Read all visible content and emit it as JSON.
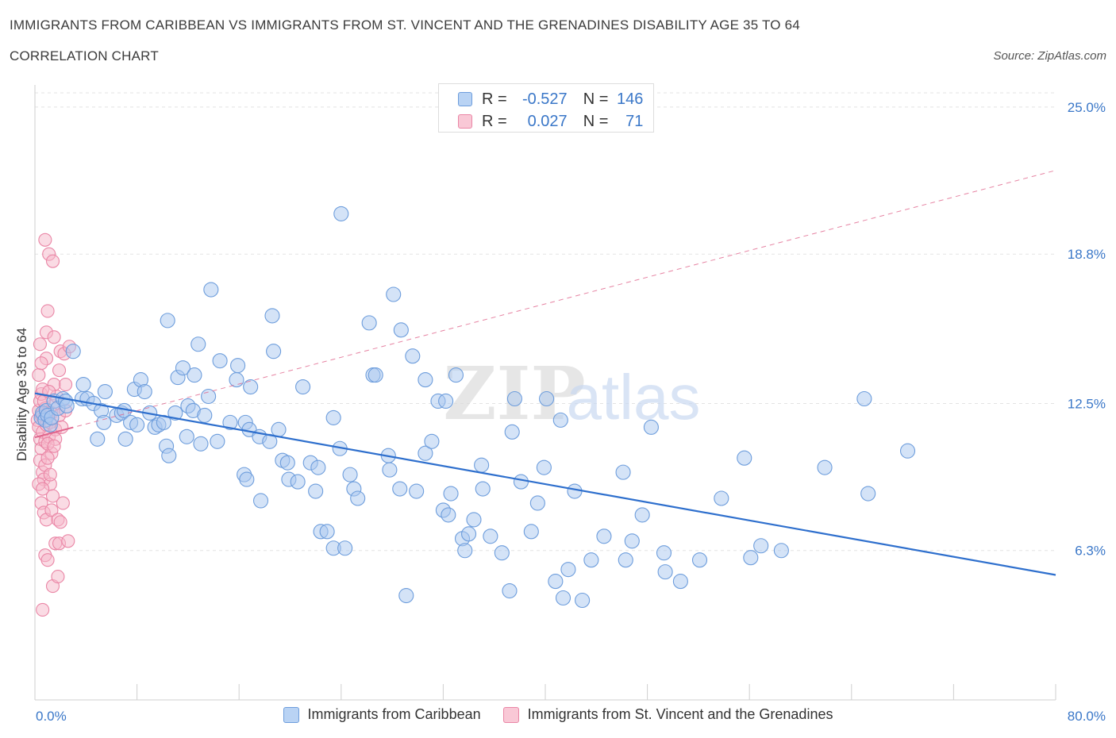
{
  "header": {
    "title": "IMMIGRANTS FROM CARIBBEAN VS IMMIGRANTS FROM ST. VINCENT AND THE GRENADINES DISABILITY AGE 35 TO 64",
    "subtitle": "CORRELATION CHART",
    "source": "Source: ZipAtlas.com"
  },
  "watermark": {
    "part1": "ZIP",
    "part2": "atlas"
  },
  "legend": {
    "rows": [
      {
        "r_label": "R =",
        "r_value": "-0.527",
        "n_label": "N =",
        "n_value": "146"
      },
      {
        "r_label": "R =",
        "r_value": "0.027",
        "n_label": "N =",
        "n_value": "71"
      }
    ]
  },
  "colors": {
    "blue_fill": "#a9c8ef",
    "blue_stroke": "#6d9ddc",
    "blue_line": "#2e6fcd",
    "pink_fill": "#f6b7c9",
    "pink_stroke": "#ea86a6",
    "pink_line": "#e0658c",
    "axis_label": "#3a77c8",
    "grid": "#e3e3e3"
  },
  "chart_data": {
    "type": "scatter",
    "title": "IMMIGRANTS FROM CARIBBEAN VS IMMIGRANTS FROM ST. VINCENT AND THE GRENADINES DISABILITY AGE 35 TO 64",
    "xlabel": "",
    "ylabel": "Disability Age 35 to 64",
    "xlim": [
      0,
      80
    ],
    "ylim": [
      0,
      25.6
    ],
    "x_tick_labels": [
      "0.0%",
      "80.0%"
    ],
    "y_ticks": [
      6.3,
      12.5,
      18.8,
      25.0
    ],
    "y_tick_labels": [
      "6.3%",
      "12.5%",
      "18.8%",
      "25.0%"
    ],
    "grid": true,
    "legend_position": "bottom",
    "series": [
      {
        "name": "Immigrants from Caribbean",
        "color": "#a9c8ef",
        "trend": {
          "x": [
            0,
            80
          ],
          "y": [
            12.93,
            5.27
          ],
          "style": "solid"
        },
        "points": [
          [
            0.5,
            11.9
          ],
          [
            0.6,
            12.1
          ],
          [
            0.8,
            11.8
          ],
          [
            0.9,
            12.2
          ],
          [
            1.0,
            12.0
          ],
          [
            1.2,
            11.6
          ],
          [
            1.3,
            11.9
          ],
          [
            1.5,
            12.6
          ],
          [
            1.8,
            12.3
          ],
          [
            2.2,
            12.7
          ],
          [
            2.4,
            12.6
          ],
          [
            2.5,
            12.4
          ],
          [
            3.0,
            14.7
          ],
          [
            3.8,
            13.3
          ],
          [
            3.7,
            12.7
          ],
          [
            4.1,
            12.7
          ],
          [
            4.6,
            12.5
          ],
          [
            4.9,
            11.0
          ],
          [
            5.2,
            12.2
          ],
          [
            5.4,
            11.7
          ],
          [
            5.5,
            13.0
          ],
          [
            6.4,
            12.0
          ],
          [
            6.8,
            12.1
          ],
          [
            7.0,
            12.2
          ],
          [
            7.1,
            11.0
          ],
          [
            7.5,
            11.7
          ],
          [
            7.8,
            13.1
          ],
          [
            8.0,
            11.6
          ],
          [
            8.3,
            13.5
          ],
          [
            8.6,
            13.0
          ],
          [
            9.0,
            12.1
          ],
          [
            9.4,
            11.5
          ],
          [
            9.7,
            11.6
          ],
          [
            10.1,
            11.7
          ],
          [
            10.3,
            10.7
          ],
          [
            10.5,
            10.3
          ],
          [
            10.4,
            16.0
          ],
          [
            11.0,
            12.1
          ],
          [
            11.2,
            13.6
          ],
          [
            11.6,
            14.0
          ],
          [
            11.9,
            11.1
          ],
          [
            12.0,
            12.4
          ],
          [
            12.4,
            12.2
          ],
          [
            12.5,
            13.7
          ],
          [
            12.8,
            15.0
          ],
          [
            13.0,
            10.8
          ],
          [
            13.3,
            12.0
          ],
          [
            13.6,
            12.8
          ],
          [
            13.8,
            17.3
          ],
          [
            14.3,
            10.9
          ],
          [
            14.5,
            14.3
          ],
          [
            15.3,
            11.7
          ],
          [
            15.8,
            13.5
          ],
          [
            15.9,
            14.1
          ],
          [
            16.5,
            11.7
          ],
          [
            16.8,
            11.4
          ],
          [
            16.4,
            9.5
          ],
          [
            16.6,
            9.3
          ],
          [
            16.9,
            13.2
          ],
          [
            17.6,
            11.1
          ],
          [
            17.7,
            8.4
          ],
          [
            18.4,
            10.9
          ],
          [
            18.6,
            16.2
          ],
          [
            18.7,
            14.7
          ],
          [
            19.1,
            11.4
          ],
          [
            19.4,
            10.1
          ],
          [
            19.8,
            10.0
          ],
          [
            19.9,
            9.3
          ],
          [
            20.6,
            9.2
          ],
          [
            21.0,
            13.2
          ],
          [
            21.6,
            10.0
          ],
          [
            22.2,
            9.8
          ],
          [
            22.0,
            8.8
          ],
          [
            22.4,
            7.1
          ],
          [
            22.9,
            7.1
          ],
          [
            23.4,
            11.9
          ],
          [
            23.4,
            6.4
          ],
          [
            23.9,
            10.6
          ],
          [
            24.3,
            6.4
          ],
          [
            24.7,
            9.5
          ],
          [
            25.0,
            8.9
          ],
          [
            25.3,
            8.5
          ],
          [
            26.2,
            15.9
          ],
          [
            26.5,
            13.7
          ],
          [
            26.7,
            13.7
          ],
          [
            27.8,
            9.7
          ],
          [
            27.7,
            10.3
          ],
          [
            28.6,
            8.9
          ],
          [
            28.7,
            15.6
          ],
          [
            29.6,
            14.5
          ],
          [
            29.1,
            4.4
          ],
          [
            28.1,
            17.1
          ],
          [
            29.9,
            8.8
          ],
          [
            30.6,
            13.5
          ],
          [
            30.6,
            10.4
          ],
          [
            31.1,
            10.9
          ],
          [
            31.6,
            12.6
          ],
          [
            32.2,
            12.6
          ],
          [
            32.0,
            8.0
          ],
          [
            32.4,
            7.8
          ],
          [
            32.6,
            8.7
          ],
          [
            33.0,
            13.7
          ],
          [
            33.5,
            6.8
          ],
          [
            33.7,
            6.3
          ],
          [
            34.0,
            7.0
          ],
          [
            34.4,
            7.6
          ],
          [
            35.0,
            9.9
          ],
          [
            35.1,
            8.9
          ],
          [
            35.7,
            6.9
          ],
          [
            36.6,
            6.2
          ],
          [
            37.2,
            4.6
          ],
          [
            37.4,
            11.3
          ],
          [
            37.6,
            12.7
          ],
          [
            38.1,
            9.2
          ],
          [
            38.9,
            7.1
          ],
          [
            39.4,
            8.3
          ],
          [
            39.9,
            9.8
          ],
          [
            40.1,
            12.7
          ],
          [
            40.8,
            5.0
          ],
          [
            41.4,
            4.3
          ],
          [
            41.8,
            5.5
          ],
          [
            41.2,
            11.8
          ],
          [
            42.3,
            8.8
          ],
          [
            42.9,
            4.2
          ],
          [
            43.6,
            5.9
          ],
          [
            44.6,
            6.9
          ],
          [
            46.1,
            9.6
          ],
          [
            46.3,
            5.9
          ],
          [
            46.8,
            6.7
          ],
          [
            47.6,
            7.8
          ],
          [
            48.3,
            11.5
          ],
          [
            49.3,
            6.2
          ],
          [
            49.4,
            5.4
          ],
          [
            50.6,
            5.0
          ],
          [
            52.1,
            5.9
          ],
          [
            53.8,
            8.5
          ],
          [
            55.6,
            10.2
          ],
          [
            56.1,
            6.0
          ],
          [
            56.9,
            6.5
          ],
          [
            58.5,
            6.3
          ],
          [
            61.9,
            9.8
          ],
          [
            65.0,
            12.7
          ],
          [
            65.3,
            8.7
          ],
          [
            68.4,
            10.5
          ],
          [
            24.0,
            20.5
          ]
        ]
      },
      {
        "name": "Immigrants from St. Vincent and the Grenadines",
        "color": "#f6b7c9",
        "trend": {
          "x": [
            0,
            80
          ],
          "y": [
            11.07,
            22.33
          ],
          "style": "dashed"
        },
        "points": [
          [
            0.2,
            11.8
          ],
          [
            0.3,
            12.2
          ],
          [
            0.3,
            11.5
          ],
          [
            0.4,
            12.6
          ],
          [
            0.4,
            11.0
          ],
          [
            0.5,
            12.9
          ],
          [
            0.5,
            10.6
          ],
          [
            0.5,
            12.0
          ],
          [
            0.6,
            11.3
          ],
          [
            0.6,
            13.1
          ],
          [
            0.7,
            11.9
          ],
          [
            0.8,
            12.3
          ],
          [
            0.8,
            10.9
          ],
          [
            0.9,
            11.6
          ],
          [
            0.9,
            14.4
          ],
          [
            1.0,
            12.1
          ],
          [
            1.1,
            11.1
          ],
          [
            1.2,
            11.7
          ],
          [
            1.3,
            10.4
          ],
          [
            1.4,
            12.4
          ],
          [
            1.5,
            13.3
          ],
          [
            1.6,
            11.4
          ],
          [
            1.7,
            12.8
          ],
          [
            0.4,
            10.1
          ],
          [
            0.6,
            9.6
          ],
          [
            0.7,
            9.3
          ],
          [
            0.8,
            9.9
          ],
          [
            1.0,
            10.2
          ],
          [
            1.2,
            9.1
          ],
          [
            1.4,
            8.6
          ],
          [
            0.5,
            8.3
          ],
          [
            0.7,
            7.9
          ],
          [
            0.9,
            7.6
          ],
          [
            1.3,
            8.0
          ],
          [
            1.8,
            7.6
          ],
          [
            2.0,
            7.5
          ],
          [
            2.2,
            8.3
          ],
          [
            1.6,
            6.6
          ],
          [
            1.9,
            6.6
          ],
          [
            2.6,
            6.7
          ],
          [
            0.8,
            6.1
          ],
          [
            1.0,
            5.9
          ],
          [
            1.4,
            4.8
          ],
          [
            1.8,
            5.2
          ],
          [
            0.6,
            3.8
          ],
          [
            0.8,
            19.4
          ],
          [
            1.1,
            18.8
          ],
          [
            1.4,
            18.5
          ],
          [
            1.0,
            16.4
          ],
          [
            0.4,
            15.0
          ],
          [
            2.0,
            14.7
          ],
          [
            2.3,
            14.6
          ],
          [
            2.7,
            14.9
          ],
          [
            1.9,
            13.9
          ],
          [
            0.9,
            15.5
          ],
          [
            1.5,
            15.3
          ],
          [
            2.4,
            13.3
          ],
          [
            0.3,
            13.7
          ],
          [
            0.5,
            14.2
          ],
          [
            0.7,
            12.6
          ],
          [
            1.1,
            13.0
          ],
          [
            1.3,
            12.1
          ],
          [
            1.6,
            11.0
          ],
          [
            1.9,
            12.0
          ],
          [
            2.1,
            11.5
          ],
          [
            2.4,
            12.2
          ],
          [
            0.3,
            9.1
          ],
          [
            0.6,
            8.9
          ],
          [
            1.0,
            10.8
          ],
          [
            1.5,
            10.7
          ],
          [
            1.2,
            9.5
          ]
        ]
      }
    ]
  }
}
